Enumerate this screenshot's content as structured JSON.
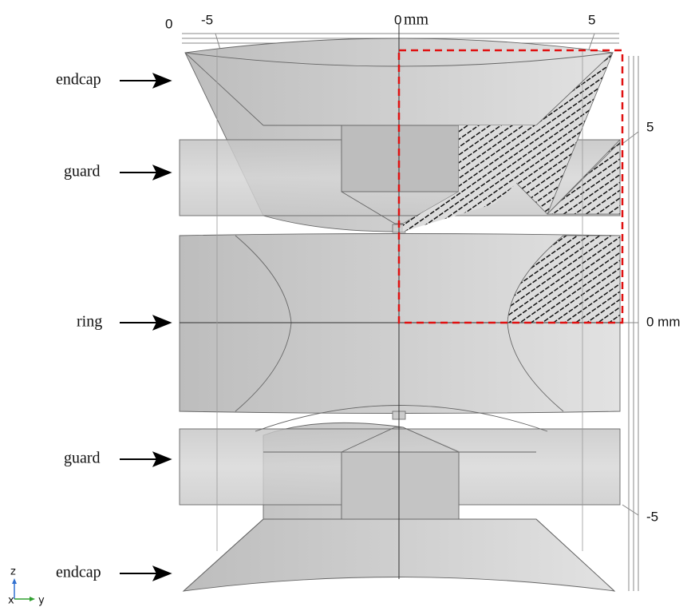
{
  "labels": [
    "endcap",
    "guard",
    "ring",
    "guard",
    "endcap"
  ],
  "top_axis": {
    "ticks": [
      "0",
      "-5",
      "0",
      "5"
    ],
    "unit": "mm"
  },
  "right_axis": {
    "ticks": [
      "5",
      "0 mm",
      "-5"
    ]
  },
  "triad": {
    "z": "z",
    "x": "x",
    "y": "y"
  }
}
